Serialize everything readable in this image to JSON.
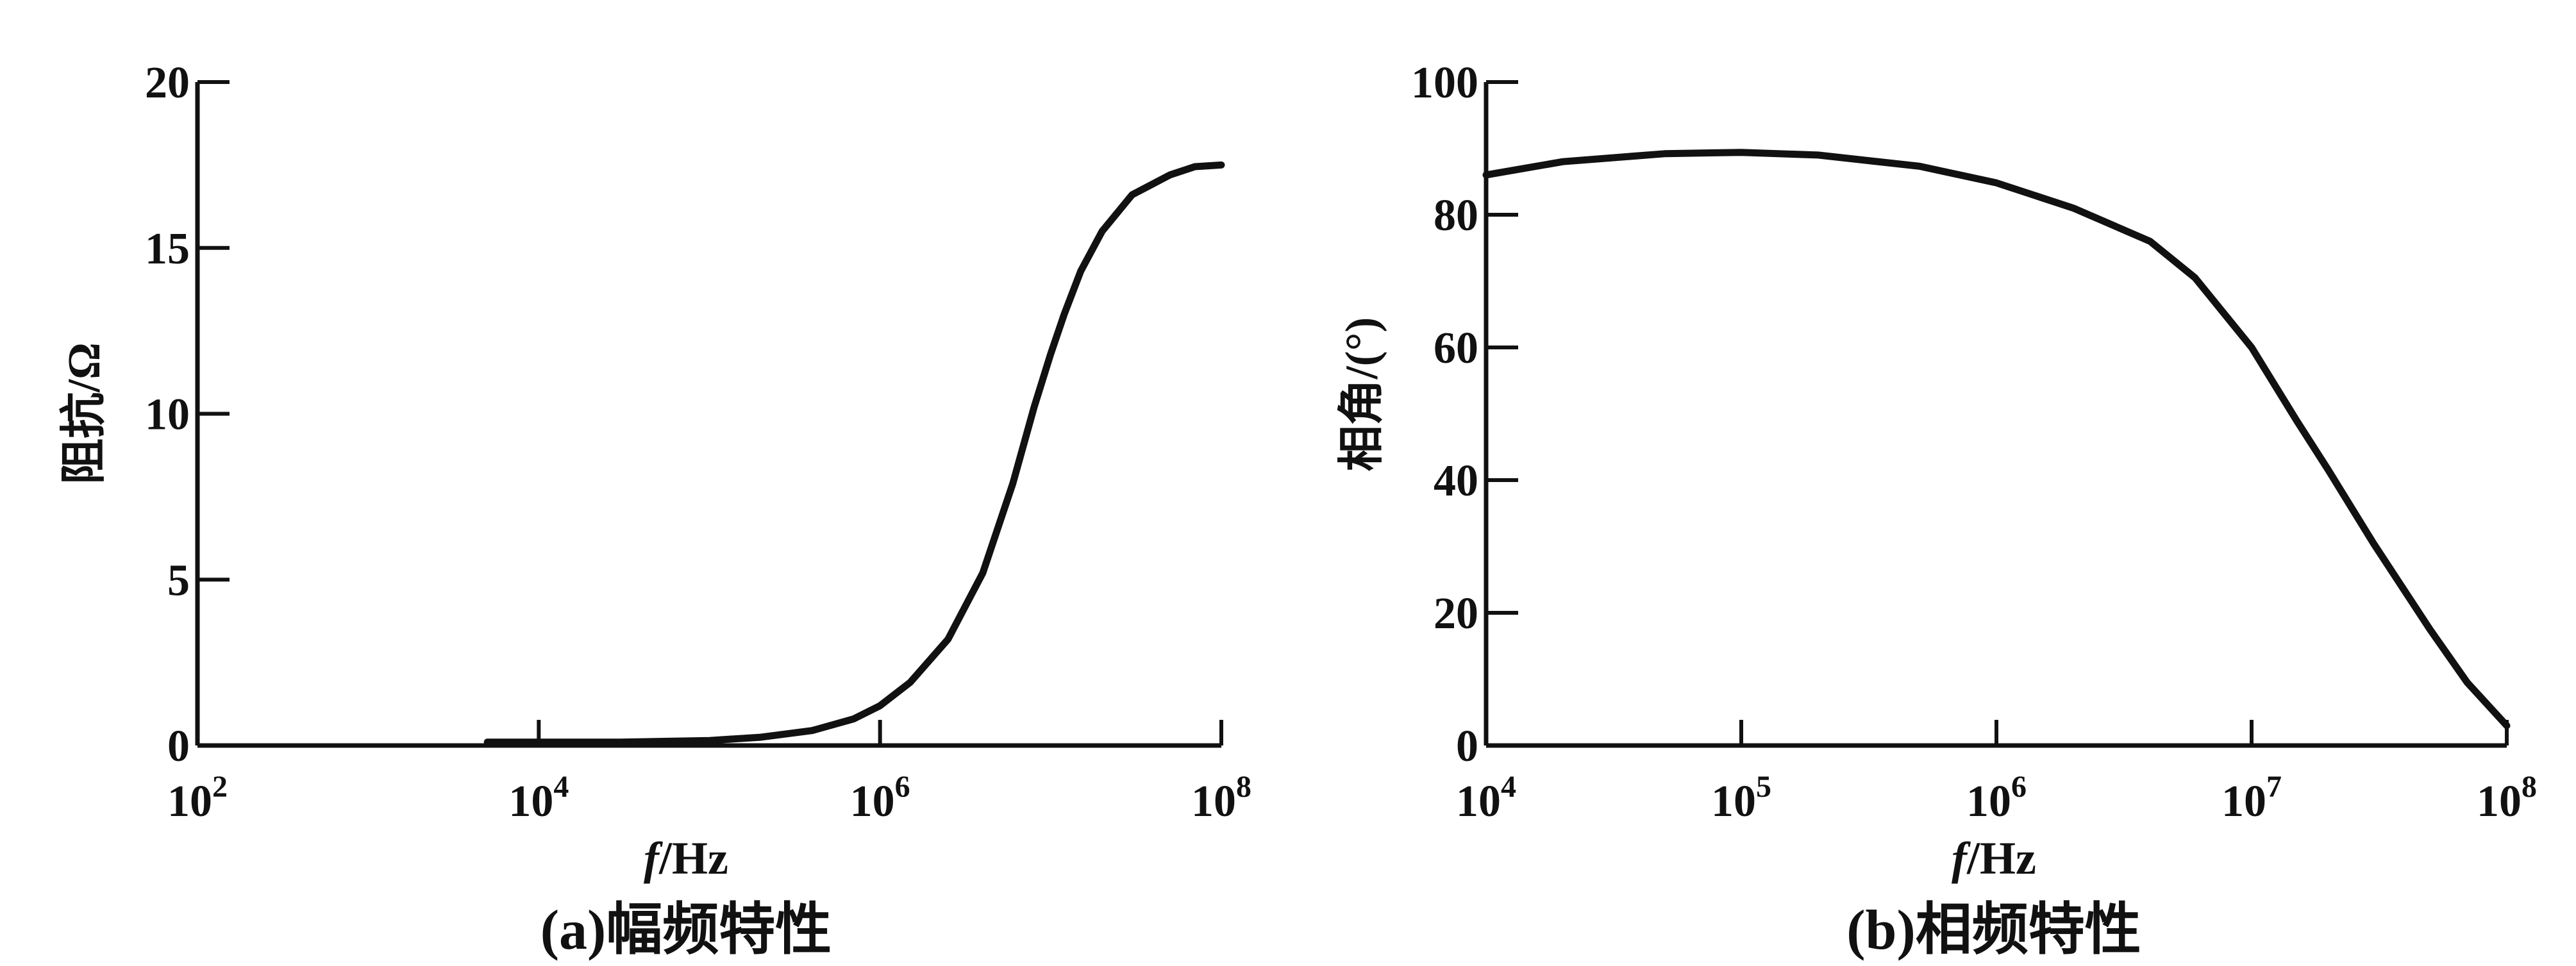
{
  "chart_data": [
    {
      "type": "line",
      "x_scale": "log",
      "xlim": [
        100,
        100000000
      ],
      "ylim": [
        0,
        20
      ],
      "xlabel_var": "f",
      "xlabel_unit": "/Hz",
      "ylabel": "阻抗/Ω",
      "caption": "(a)幅频特性",
      "x_ticks": [
        {
          "value": 100,
          "base": "10",
          "exp": "2"
        },
        {
          "value": 10000,
          "base": "10",
          "exp": "4"
        },
        {
          "value": 1000000,
          "base": "10",
          "exp": "6"
        },
        {
          "value": 100000000,
          "base": "10",
          "exp": "8"
        }
      ],
      "y_ticks": [
        {
          "value": 0,
          "label": "0"
        },
        {
          "value": 5,
          "label": "5"
        },
        {
          "value": 10,
          "label": "10"
        },
        {
          "value": 15,
          "label": "15"
        },
        {
          "value": 20,
          "label": "20"
        }
      ],
      "series": [
        {
          "x": [
            5000,
            10000,
            30000,
            100000,
            200000,
            400000,
            700000,
            1000000,
            1500000,
            2500000,
            4000000,
            6000000,
            8000000,
            10000000,
            12000000,
            15000000,
            20000000,
            30000000,
            50000000,
            70000000,
            100000000
          ],
          "y": [
            0.1,
            0.1,
            0.1,
            0.15,
            0.25,
            0.45,
            0.8,
            1.2,
            1.9,
            3.2,
            5.2,
            7.9,
            10.2,
            11.8,
            13.0,
            14.3,
            15.5,
            16.6,
            17.2,
            17.45,
            17.5
          ]
        }
      ]
    },
    {
      "type": "line",
      "x_scale": "log",
      "xlim": [
        10000,
        100000000
      ],
      "ylim": [
        0,
        100
      ],
      "xlabel_var": "f",
      "xlabel_unit": "/Hz",
      "ylabel": "相角/(°)",
      "caption": "(b)相频特性",
      "x_ticks": [
        {
          "value": 10000,
          "base": "10",
          "exp": "4"
        },
        {
          "value": 100000,
          "base": "10",
          "exp": "5"
        },
        {
          "value": 1000000,
          "base": "10",
          "exp": "6"
        },
        {
          "value": 10000000,
          "base": "10",
          "exp": "7"
        },
        {
          "value": 100000000,
          "base": "10",
          "exp": "8"
        }
      ],
      "y_ticks": [
        {
          "value": 0,
          "label": "0"
        },
        {
          "value": 20,
          "label": "20"
        },
        {
          "value": 40,
          "label": "40"
        },
        {
          "value": 60,
          "label": "60"
        },
        {
          "value": 80,
          "label": "80"
        },
        {
          "value": 100,
          "label": "100"
        }
      ],
      "series": [
        {
          "x": [
            10000,
            20000,
            50000,
            100000,
            200000,
            500000,
            1000000,
            2000000,
            4000000,
            6000000,
            10000000,
            15000000,
            20000000,
            30000000,
            50000000,
            70000000,
            100000000
          ],
          "y": [
            86,
            88,
            89.2,
            89.4,
            89.0,
            87.3,
            84.8,
            81.0,
            76.0,
            70.5,
            60.0,
            49.0,
            41.5,
            30.5,
            17.5,
            9.5,
            3.0
          ]
        }
      ]
    }
  ]
}
